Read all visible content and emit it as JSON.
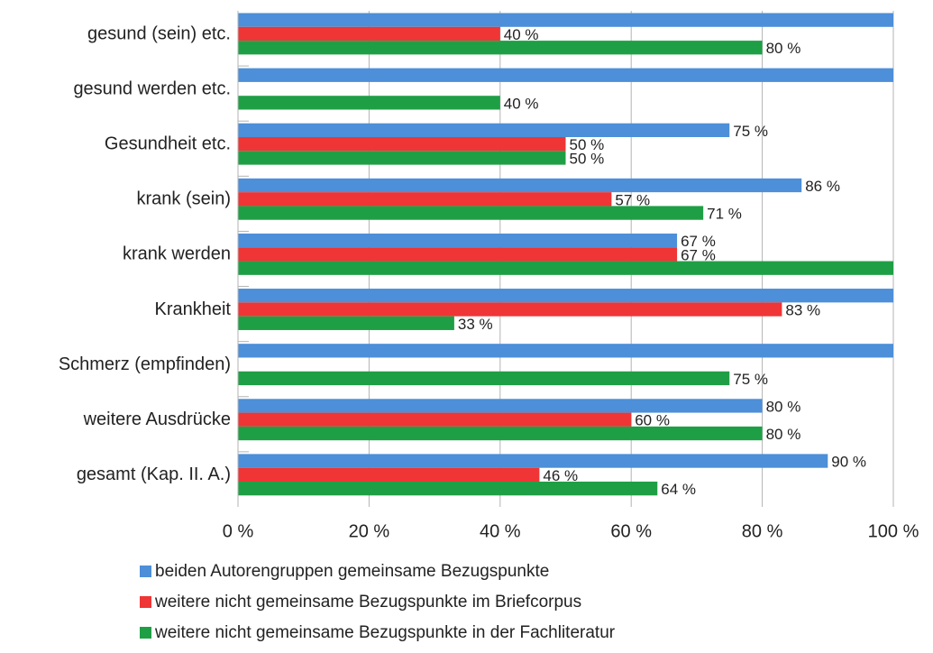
{
  "chart_data": {
    "type": "hbar",
    "categories": [
      "gesund (sein) etc.",
      "gesund werden etc.",
      "Gesundheit etc.",
      "krank (sein)",
      "krank werden",
      "Krankheit",
      "Schmerz (empfinden)",
      "weitere Ausdrücke",
      "gesamt (Kap. II. A.)"
    ],
    "series": [
      {
        "name": "beiden Autorengruppen gemeinsame Bezugspunkte",
        "color": "#4d8fd8",
        "values": [
          100,
          100,
          75,
          86,
          67,
          100,
          100,
          80,
          90
        ],
        "value_labels": [
          null,
          null,
          "75 %",
          "86 %",
          "67 %",
          null,
          null,
          "80 %",
          "90 %"
        ]
      },
      {
        "name": "weitere nicht gemeinsame Bezugspunkte im Briefcorpus",
        "color": "#ef3535",
        "values": [
          40,
          null,
          50,
          57,
          67,
          83,
          null,
          60,
          46
        ],
        "value_labels": [
          "40 %",
          null,
          "50 %",
          "57 %",
          "67 %",
          "83 %",
          null,
          "60 %",
          "46 %"
        ]
      },
      {
        "name": "weitere nicht gemeinsame Bezugspunkte in der Fachliteratur",
        "color": "#1f9f45",
        "values": [
          80,
          40,
          50,
          71,
          100,
          33,
          75,
          80,
          64
        ],
        "value_labels": [
          "80 %",
          "40 %",
          "50 %",
          "71 %",
          null,
          "33 %",
          "75 %",
          "80 %",
          "64 %"
        ]
      }
    ],
    "xlim": [
      0,
      100
    ],
    "xticks": [
      {
        "value": 0,
        "label": "0 %"
      },
      {
        "value": 20,
        "label": "20 %"
      },
      {
        "value": 40,
        "label": "40 %"
      },
      {
        "value": 60,
        "label": "60 %"
      },
      {
        "value": 80,
        "label": "80 %"
      },
      {
        "value": 100,
        "label": "100 %"
      }
    ],
    "grid": true,
    "legend": "bottom"
  }
}
